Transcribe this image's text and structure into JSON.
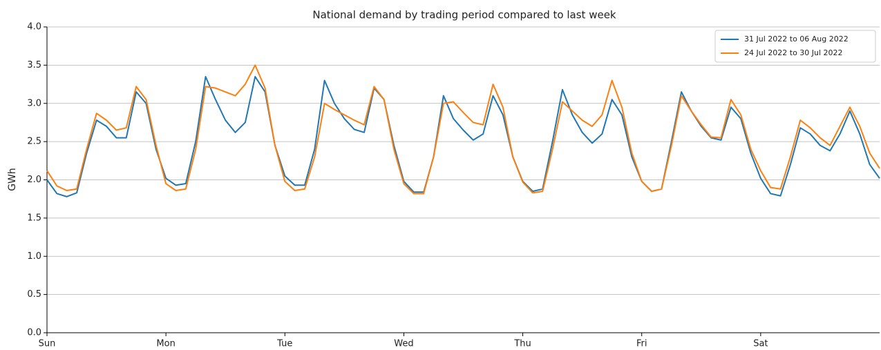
{
  "chart_data": {
    "type": "line",
    "title": "National demand by trading period compared to last week",
    "ylabel": "GWh",
    "x": [
      0,
      2,
      4,
      6,
      8,
      10,
      12,
      14,
      16,
      18,
      20,
      22,
      24,
      26,
      28,
      30,
      32,
      34,
      36,
      38,
      40,
      42,
      44,
      46,
      48,
      50,
      52,
      54,
      56,
      58,
      60,
      62,
      64,
      66,
      68,
      70,
      72,
      74,
      76,
      78,
      80,
      82,
      84,
      86,
      88,
      90,
      92,
      94,
      96,
      98,
      100,
      102,
      104,
      106,
      108,
      110,
      112,
      114,
      116,
      118,
      120,
      122,
      124,
      126,
      128,
      130,
      132,
      134,
      136,
      138,
      140,
      142,
      144,
      146,
      148,
      150,
      152,
      154,
      156,
      158,
      160,
      162,
      164,
      166,
      168
    ],
    "series": [
      {
        "name": "31 Jul 2022 to 06 Aug 2022",
        "color": "#1f77b4",
        "values": [
          2.0,
          1.82,
          1.78,
          1.83,
          2.35,
          2.78,
          2.7,
          2.55,
          2.55,
          3.15,
          3.0,
          2.4,
          2.02,
          1.93,
          1.95,
          2.5,
          3.35,
          3.05,
          2.78,
          2.62,
          2.75,
          3.35,
          3.15,
          2.45,
          2.05,
          1.93,
          1.93,
          2.4,
          3.3,
          3.0,
          2.8,
          2.66,
          2.62,
          3.2,
          3.05,
          2.45,
          1.98,
          1.84,
          1.84,
          2.3,
          3.1,
          2.8,
          2.65,
          2.52,
          2.6,
          3.1,
          2.85,
          2.3,
          1.98,
          1.85,
          1.88,
          2.5,
          3.18,
          2.85,
          2.62,
          2.48,
          2.6,
          3.05,
          2.85,
          2.3,
          1.98,
          1.85,
          1.88,
          2.5,
          3.15,
          2.9,
          2.7,
          2.55,
          2.52,
          2.95,
          2.8,
          2.35,
          2.02,
          1.82,
          1.79,
          2.2,
          2.68,
          2.6,
          2.45,
          2.38,
          2.6,
          2.9,
          2.6,
          2.2,
          2.02
        ]
      },
      {
        "name": "24 Jul 2022 to 30 Jul 2022",
        "color": "#ff7f0e",
        "values": [
          2.12,
          1.92,
          1.86,
          1.88,
          2.4,
          2.87,
          2.78,
          2.65,
          2.68,
          3.22,
          3.05,
          2.45,
          1.95,
          1.86,
          1.88,
          2.4,
          3.22,
          3.2,
          3.15,
          3.1,
          3.25,
          3.5,
          3.2,
          2.45,
          1.98,
          1.86,
          1.88,
          2.3,
          3.0,
          2.92,
          2.85,
          2.78,
          2.72,
          3.22,
          3.05,
          2.4,
          1.95,
          1.82,
          1.82,
          2.3,
          3.0,
          3.02,
          2.88,
          2.75,
          2.72,
          3.25,
          2.95,
          2.3,
          1.97,
          1.83,
          1.85,
          2.4,
          3.02,
          2.9,
          2.78,
          2.7,
          2.85,
          3.3,
          2.95,
          2.35,
          1.98,
          1.85,
          1.88,
          2.45,
          3.1,
          2.9,
          2.72,
          2.56,
          2.55,
          3.05,
          2.85,
          2.4,
          2.12,
          1.9,
          1.88,
          2.3,
          2.78,
          2.68,
          2.55,
          2.45,
          2.7,
          2.95,
          2.7,
          2.35,
          2.15
        ]
      }
    ],
    "xlim": [
      0,
      168
    ],
    "xticks": [
      {
        "value": 0,
        "label": "Sun"
      },
      {
        "value": 24,
        "label": "Mon"
      },
      {
        "value": 48,
        "label": "Tue"
      },
      {
        "value": 72,
        "label": "Wed"
      },
      {
        "value": 96,
        "label": "Thu"
      },
      {
        "value": 120,
        "label": "Fri"
      },
      {
        "value": 144,
        "label": "Sat"
      }
    ],
    "ylim": [
      0,
      4
    ],
    "yticks": [
      {
        "value": 0,
        "label": "0.0"
      },
      {
        "value": 0.5,
        "label": "0.5"
      },
      {
        "value": 1,
        "label": "1.0"
      },
      {
        "value": 1.5,
        "label": "1.5"
      },
      {
        "value": 2,
        "label": "2.0"
      },
      {
        "value": 2.5,
        "label": "2.5"
      },
      {
        "value": 3,
        "label": "3.0"
      },
      {
        "value": 3.5,
        "label": "3.5"
      },
      {
        "value": 4,
        "label": "4.0"
      }
    ],
    "grid": true,
    "legend": "upper right"
  }
}
